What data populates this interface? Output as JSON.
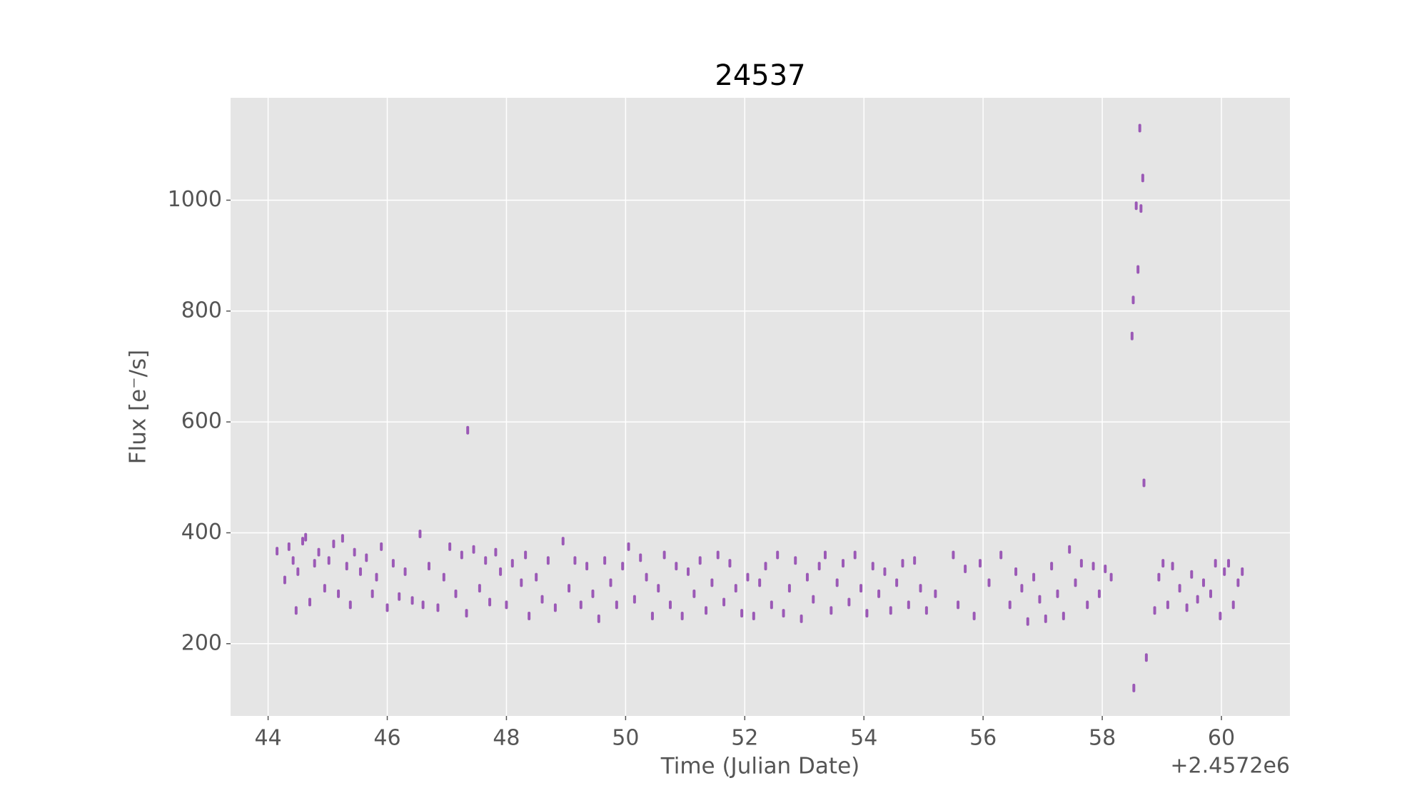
{
  "chart_data": {
    "type": "scatter",
    "title": "24537",
    "xlabel": "Time (Julian Date)",
    "ylabel": "Flux [e⁻/s]",
    "x_offset_label": "+2.4572e6",
    "color": "#9b59b6",
    "grid": true,
    "xlim": [
      43.37,
      61.15
    ],
    "ylim": [
      69.7,
      1184.7
    ],
    "xticks": [
      44,
      46,
      48,
      50,
      52,
      54,
      56,
      58,
      60
    ],
    "yticks": [
      200,
      400,
      600,
      800,
      1000
    ],
    "x": [
      44.15,
      44.28,
      44.35,
      44.42,
      44.47,
      44.5,
      44.58,
      44.63,
      44.7,
      44.78,
      44.85,
      44.95,
      45.02,
      45.1,
      45.18,
      45.25,
      45.32,
      45.38,
      45.45,
      45.55,
      45.65,
      45.75,
      45.82,
      45.9,
      46.0,
      46.1,
      46.2,
      46.3,
      46.42,
      46.55,
      46.6,
      46.7,
      46.85,
      46.95,
      47.05,
      47.15,
      47.25,
      47.33,
      47.35,
      47.45,
      47.55,
      47.65,
      47.72,
      47.82,
      47.9,
      48.0,
      48.1,
      48.25,
      48.32,
      48.38,
      48.5,
      48.6,
      48.7,
      48.82,
      48.95,
      49.05,
      49.15,
      49.25,
      49.35,
      49.45,
      49.55,
      49.65,
      49.75,
      49.85,
      49.95,
      50.05,
      50.15,
      50.25,
      50.35,
      50.45,
      50.55,
      50.65,
      50.75,
      50.85,
      50.95,
      51.05,
      51.15,
      51.25,
      51.35,
      51.45,
      51.55,
      51.65,
      51.75,
      51.85,
      51.95,
      52.05,
      52.15,
      52.25,
      52.35,
      52.45,
      52.55,
      52.65,
      52.75,
      52.85,
      52.95,
      53.05,
      53.15,
      53.25,
      53.35,
      53.45,
      53.55,
      53.65,
      53.75,
      53.85,
      53.95,
      54.05,
      54.15,
      54.25,
      54.35,
      54.45,
      54.55,
      54.65,
      54.75,
      54.85,
      54.95,
      55.05,
      55.2,
      55.5,
      55.58,
      55.7,
      55.85,
      55.95,
      56.1,
      56.3,
      56.45,
      56.55,
      56.65,
      56.75,
      56.85,
      56.95,
      57.05,
      57.15,
      57.25,
      57.35,
      57.45,
      57.55,
      57.65,
      57.75,
      57.85,
      57.95,
      58.05,
      58.15,
      58.5,
      58.52,
      58.53,
      58.57,
      58.6,
      58.63,
      58.65,
      58.68,
      58.7,
      58.74,
      58.88,
      58.95,
      59.02,
      59.1,
      59.18,
      59.3,
      59.42,
      59.5,
      59.6,
      59.7,
      59.82,
      59.9,
      59.98,
      60.05,
      60.12,
      60.2,
      60.28,
      60.35
    ],
    "values": [
      367,
      315,
      375,
      350,
      260,
      330,
      385,
      392,
      275,
      345,
      365,
      300,
      350,
      380,
      290,
      390,
      340,
      270,
      365,
      330,
      355,
      290,
      320,
      375,
      265,
      345,
      285,
      330,
      278,
      398,
      270,
      340,
      265,
      320,
      375,
      290,
      360,
      255,
      585,
      370,
      300,
      350,
      275,
      365,
      330,
      270,
      345,
      310,
      360,
      250,
      320,
      280,
      350,
      265,
      385,
      300,
      350,
      270,
      340,
      290,
      245,
      350,
      310,
      270,
      340,
      375,
      280,
      355,
      320,
      250,
      300,
      360,
      270,
      340,
      250,
      330,
      290,
      350,
      260,
      310,
      360,
      275,
      345,
      300,
      255,
      320,
      250,
      310,
      340,
      270,
      360,
      255,
      300,
      350,
      245,
      320,
      280,
      340,
      360,
      260,
      310,
      345,
      275,
      360,
      300,
      255,
      340,
      290,
      330,
      260,
      310,
      345,
      270,
      350,
      300,
      260,
      290,
      360,
      270,
      335,
      250,
      345,
      310,
      360,
      270,
      330,
      300,
      240,
      320,
      280,
      245,
      340,
      290,
      250,
      370,
      310,
      345,
      270,
      340,
      290,
      335,
      320,
      755,
      820,
      120,
      990,
      875,
      1130,
      985,
      1040,
      490,
      175,
      260,
      320,
      345,
      270,
      340,
      300,
      265,
      325,
      280,
      310,
      290,
      345,
      250,
      330,
      345,
      270,
      310,
      330
    ]
  }
}
